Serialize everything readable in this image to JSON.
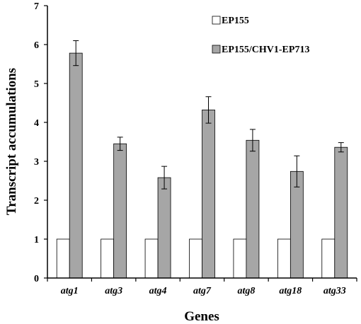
{
  "chart_data": {
    "type": "bar",
    "title": "",
    "xlabel": "Genes",
    "ylabel": "Transcript  accumulations",
    "ylim": [
      0,
      7
    ],
    "yticks": [
      "0",
      "1",
      "2",
      "3",
      "4",
      "5",
      "6",
      "7"
    ],
    "categories": [
      "atg1",
      "atg3",
      "atg4",
      "atg7",
      "atg8",
      "atg18",
      "atg33"
    ],
    "series": [
      {
        "name": "EP155",
        "color": "#ffffff",
        "values": [
          1,
          1,
          1,
          1,
          1,
          1,
          1
        ],
        "errors": [
          0,
          0,
          0,
          0,
          0,
          0,
          0
        ]
      },
      {
        "name": "EP155/CHV1-EP713",
        "color": "#a6a6a6",
        "values": [
          5.78,
          3.45,
          2.58,
          4.32,
          3.54,
          2.74,
          3.36
        ],
        "errors": [
          0.32,
          0.17,
          0.29,
          0.34,
          0.28,
          0.4,
          0.12
        ]
      }
    ],
    "legend_position": "top-right",
    "grid": false
  }
}
